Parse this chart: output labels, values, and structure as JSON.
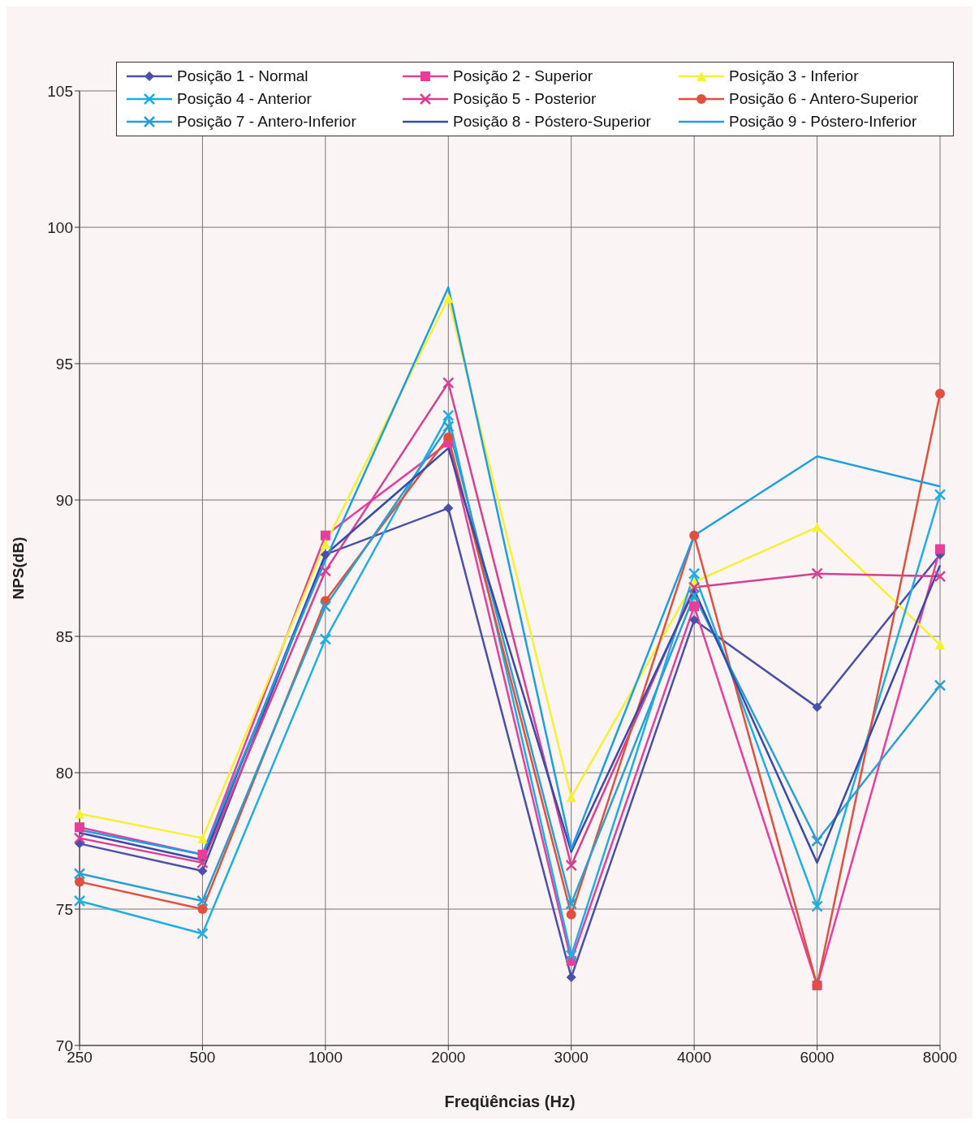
{
  "chart_data": {
    "type": "line",
    "xlabel": "Freqüências (Hz)",
    "ylabel": "NPS(dB)",
    "categories": [
      "250",
      "500",
      "1000",
      "2000",
      "3000",
      "4000",
      "6000",
      "8000"
    ],
    "ylim": [
      70,
      105
    ],
    "yticks": [
      70,
      75,
      80,
      85,
      90,
      95,
      100,
      105
    ],
    "grid": true,
    "legend": "top",
    "line_style": "solid",
    "series": [
      {
        "name": "Posição 1 - Normal",
        "color": "#4a4fa8",
        "marker": "diamond",
        "values": [
          77.4,
          76.4,
          88.0,
          89.7,
          72.5,
          85.6,
          82.4,
          88.0
        ]
      },
      {
        "name": "Posição 2 - Superior",
        "color": "#e83e9b",
        "marker": "square",
        "values": [
          78.0,
          77.0,
          88.7,
          92.1,
          73.1,
          86.1,
          72.2,
          88.2
        ]
      },
      {
        "name": "Posição 3 - Inferior",
        "color": "#f5f032",
        "marker": "triangle",
        "values": [
          78.5,
          77.6,
          88.4,
          97.4,
          79.1,
          87.0,
          89.0,
          84.7
        ]
      },
      {
        "name": "Posição 4 - Anterior",
        "color": "#1eaee6",
        "marker": "cross",
        "values": [
          75.3,
          74.1,
          84.9,
          93.1,
          73.3,
          87.3,
          75.1,
          90.2
        ]
      },
      {
        "name": "Posição 5 - Posterior",
        "color": "#d63f92",
        "marker": "cross",
        "values": [
          77.6,
          76.7,
          87.4,
          94.3,
          76.6,
          86.8,
          87.3,
          87.2
        ]
      },
      {
        "name": "Posição 6 - Antero-Superior",
        "color": "#e05040",
        "marker": "circle",
        "values": [
          76.0,
          75.0,
          86.3,
          92.3,
          74.8,
          88.7,
          72.2,
          93.9
        ]
      },
      {
        "name": "Posição 7 - Antero-Inferior",
        "color": "#2a9fd0",
        "marker": "cross",
        "values": [
          76.3,
          75.3,
          86.1,
          92.7,
          75.2,
          86.5,
          77.5,
          83.2
        ]
      },
      {
        "name": "Posição 8 - Póstero-Superior",
        "color": "#3a4aa8",
        "marker": "none",
        "values": [
          77.8,
          76.8,
          88.0,
          91.9,
          77.1,
          86.7,
          76.7,
          87.6
        ]
      },
      {
        "name": "Posição 9 - Póstero-Inferior",
        "color": "#1e9ee0",
        "marker": "none",
        "values": [
          77.9,
          77.0,
          87.8,
          97.8,
          77.2,
          88.7,
          91.6,
          90.5
        ]
      }
    ]
  }
}
